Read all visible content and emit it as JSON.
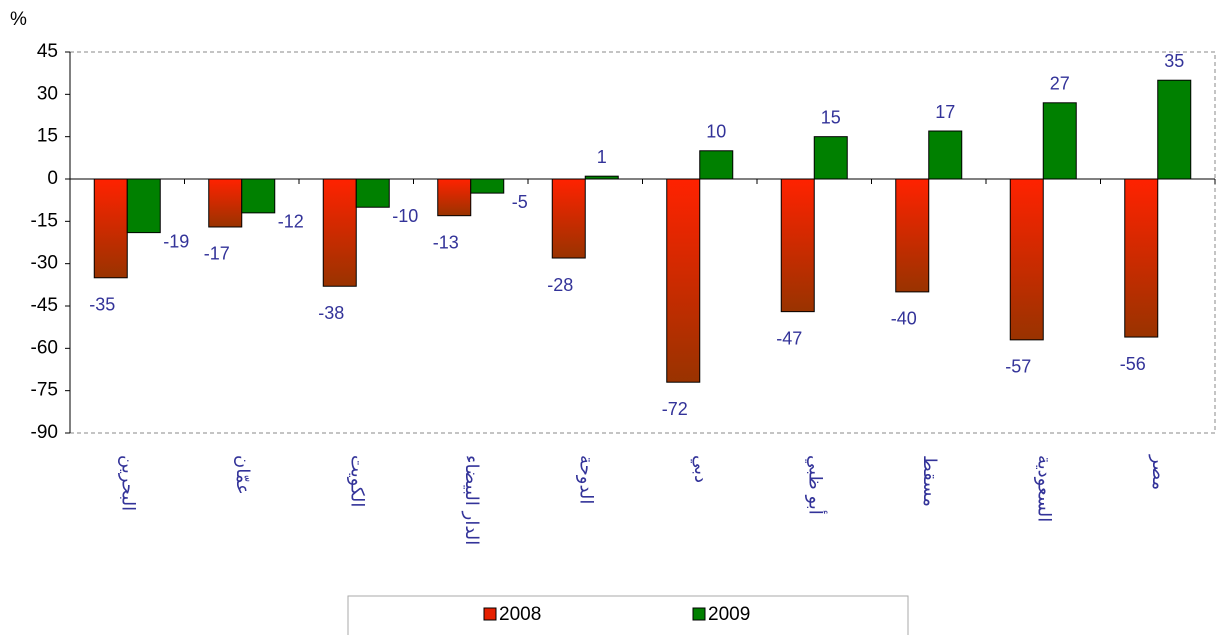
{
  "chart_data": {
    "type": "bar",
    "y_unit": "%",
    "categories": [
      "البحرين",
      "عمّان",
      "الكويت",
      "الدار البيضاء",
      "الدوحة",
      "دبي",
      "أبو ظبي",
      "مسقط",
      "السعودية",
      "مصر"
    ],
    "series": [
      {
        "name": "2008",
        "color": "#e62000",
        "values": [
          -35,
          -17,
          -38,
          -13,
          -28,
          -72,
          -47,
          -40,
          -57,
          -56
        ]
      },
      {
        "name": "2009",
        "color": "#008000",
        "values": [
          -19,
          -12,
          -10,
          -5,
          1,
          10,
          15,
          17,
          27,
          35
        ]
      }
    ],
    "ylim": [
      -90,
      45
    ],
    "yticks": [
      -90,
      -75,
      -60,
      -45,
      -30,
      -15,
      0,
      15,
      30,
      45
    ],
    "legend": "bottom"
  }
}
